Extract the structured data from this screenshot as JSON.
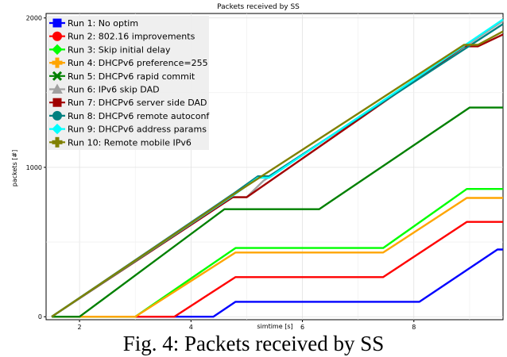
{
  "chart_data": {
    "type": "line",
    "title": "Packets received by SS",
    "xlabel": "simtime [s]",
    "ylabel": "packets [#]",
    "xlim": [
      1.4,
      9.6
    ],
    "ylim": [
      -20,
      2030
    ],
    "xticks": [
      2,
      4,
      6,
      8
    ],
    "yticks": [
      0,
      1000,
      2000
    ],
    "grid": true,
    "legend_position": "top-left",
    "series": [
      {
        "name": "Run 1: No optim",
        "color": "#0000ff",
        "marker": "square",
        "points": [
          [
            1.5,
            0
          ],
          [
            4.4,
            0
          ],
          [
            4.8,
            100
          ],
          [
            7.5,
            100
          ],
          [
            8.1,
            100
          ],
          [
            9.5,
            450
          ],
          [
            9.6,
            450
          ]
        ]
      },
      {
        "name": "Run 2: 802.16 improvements",
        "color": "#ff0000",
        "marker": "circle",
        "points": [
          [
            1.5,
            0
          ],
          [
            3.7,
            0
          ],
          [
            4.8,
            265
          ],
          [
            7.45,
            265
          ],
          [
            8.95,
            635
          ],
          [
            9.6,
            635
          ]
        ]
      },
      {
        "name": "Run 3: Skip initial delay",
        "color": "#00ff00",
        "marker": "diamond",
        "points": [
          [
            1.5,
            0
          ],
          [
            3.0,
            0
          ],
          [
            4.8,
            460
          ],
          [
            7.45,
            460
          ],
          [
            8.95,
            855
          ],
          [
            9.6,
            855
          ]
        ]
      },
      {
        "name": "Run 4: DHCPv6 preference=255",
        "color": "#ffa500",
        "marker": "plus",
        "points": [
          [
            1.5,
            0
          ],
          [
            3.0,
            0
          ],
          [
            4.8,
            430
          ],
          [
            7.45,
            430
          ],
          [
            8.95,
            795
          ],
          [
            9.6,
            795
          ]
        ]
      },
      {
        "name": "Run 5: DHCPv6 rapid commit",
        "color": "#008000",
        "marker": "x",
        "points": [
          [
            1.5,
            0
          ],
          [
            2.0,
            0
          ],
          [
            4.6,
            720
          ],
          [
            6.3,
            720
          ],
          [
            9.0,
            1400
          ],
          [
            9.6,
            1400
          ]
        ]
      },
      {
        "name": "Run 6: IPv6 skip DAD",
        "color": "#a0a0a0",
        "marker": "triangle",
        "points": [
          [
            1.5,
            0
          ],
          [
            4.75,
            800
          ],
          [
            5.0,
            800
          ],
          [
            5.3,
            910
          ],
          [
            9.6,
            1980
          ]
        ]
      },
      {
        "name": "Run 7: DHCPv6 server side DAD",
        "color": "#a00000",
        "marker": "square",
        "points": [
          [
            1.5,
            0
          ],
          [
            4.75,
            800
          ],
          [
            5.0,
            800
          ],
          [
            8.9,
            1810
          ],
          [
            9.15,
            1810
          ],
          [
            9.6,
            1890
          ]
        ]
      },
      {
        "name": "Run 8: DHCPv6 remote autoconf",
        "color": "#008080",
        "marker": "circle",
        "points": [
          [
            1.5,
            0
          ],
          [
            4.75,
            820
          ],
          [
            5.2,
            940
          ],
          [
            5.4,
            940
          ],
          [
            9.6,
            1960
          ]
        ]
      },
      {
        "name": "Run 9: DHCPv6 address params",
        "color": "#00ffff",
        "marker": "diamond",
        "points": [
          [
            1.5,
            0
          ],
          [
            4.75,
            810
          ],
          [
            5.2,
            930
          ],
          [
            5.4,
            930
          ],
          [
            9.6,
            1990
          ]
        ]
      },
      {
        "name": "Run 10: Remote mobile IPv6",
        "color": "#808000",
        "marker": "plus",
        "points": [
          [
            1.5,
            0
          ],
          [
            4.75,
            815
          ],
          [
            5.1,
            900
          ],
          [
            8.9,
            1820
          ],
          [
            9.15,
            1820
          ],
          [
            9.6,
            1910
          ]
        ]
      }
    ]
  },
  "caption": "Fig. 4: Packets received by SS"
}
